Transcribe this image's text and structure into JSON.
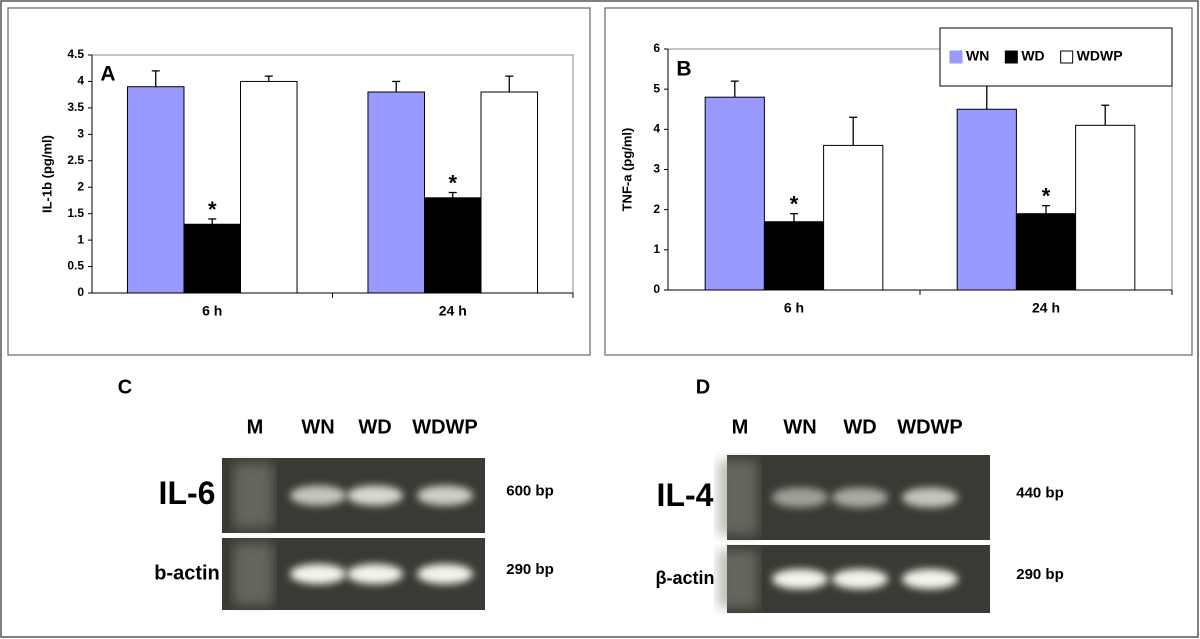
{
  "chart_data": [
    {
      "type": "bar",
      "panel_label": "A",
      "ylabel": "IL-1b (pg/ml)",
      "categories": [
        "6 h",
        "24 h"
      ],
      "series": [
        {
          "color": "#9999ff",
          "values": [
            3.9,
            3.8
          ],
          "errors": [
            0.3,
            0.2
          ]
        },
        {
          "color": "#000000",
          "values": [
            1.3,
            1.8
          ],
          "errors": [
            0.1,
            0.1
          ],
          "markers": [
            "*",
            "*"
          ]
        },
        {
          "color": "#ffffff",
          "values": [
            4.0,
            3.8
          ],
          "errors": [
            0.1,
            0.3
          ]
        }
      ],
      "ylim": [
        0,
        4.5
      ],
      "yticks": [
        0,
        0.5,
        1,
        1.5,
        2,
        2.5,
        3,
        3.5,
        4,
        4.5
      ],
      "legend": false
    },
    {
      "type": "bar",
      "panel_label": "B",
      "ylabel": "TNF-a (pg/ml)",
      "categories": [
        "6 h",
        "24 h"
      ],
      "series": [
        {
          "name": "WN",
          "color": "#9999ff",
          "values": [
            4.8,
            4.5
          ],
          "errors": [
            0.4,
            0.6
          ]
        },
        {
          "name": "WD",
          "color": "#000000",
          "values": [
            1.7,
            1.9
          ],
          "errors": [
            0.2,
            0.2
          ],
          "markers": [
            "*",
            "*"
          ]
        },
        {
          "name": "WDWP",
          "color": "#ffffff",
          "values": [
            3.6,
            4.1
          ],
          "errors": [
            0.7,
            0.5
          ]
        }
      ],
      "ylim": [
        0,
        6
      ],
      "yticks": [
        0,
        1,
        2,
        3,
        4,
        5,
        6
      ],
      "legend": "top-right"
    }
  ],
  "gels": [
    {
      "label": "C",
      "lanes": [
        "M",
        "WN",
        "WD",
        "WDWP"
      ],
      "rows": [
        {
          "name": "IL-6",
          "size": "600 bp"
        },
        {
          "name": "b-actin",
          "size": "290 bp"
        }
      ]
    },
    {
      "label": "D",
      "lanes": [
        "M",
        "WN",
        "WD",
        "WDWP"
      ],
      "rows": [
        {
          "name": "IL-4",
          "size": "440 bp"
        },
        {
          "name": "β-actin",
          "size": "290 bp"
        }
      ]
    }
  ]
}
